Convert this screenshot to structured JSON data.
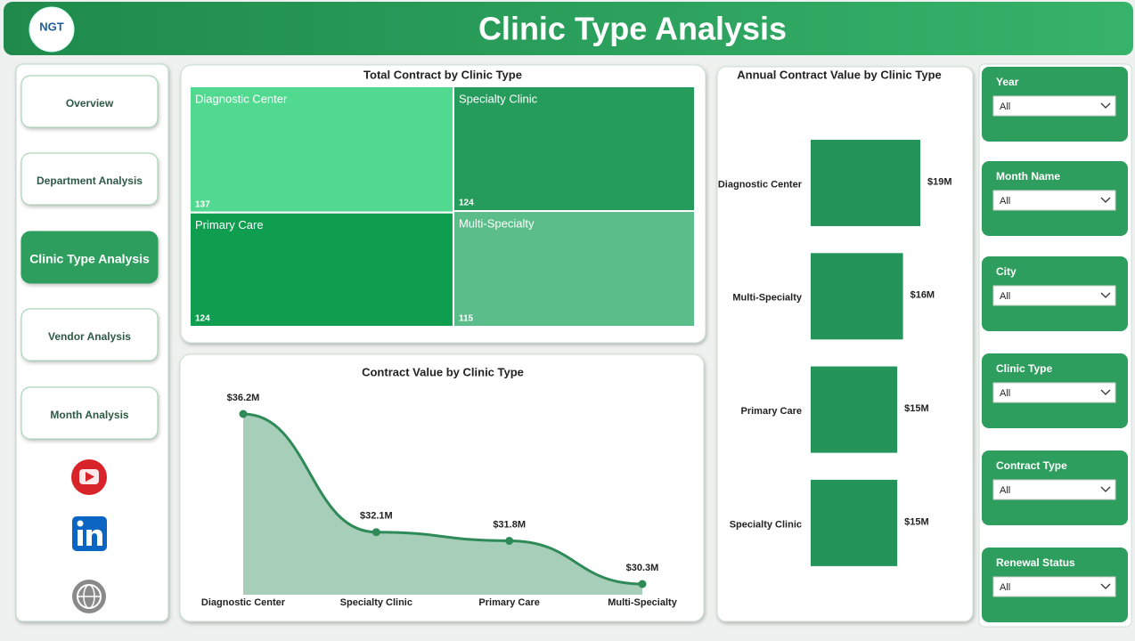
{
  "header": {
    "logo": "NGT",
    "title": "Clinic Type Analysis"
  },
  "nav": {
    "items": [
      "Overview",
      "Department Analysis",
      "Clinic Type Analysis",
      "Vendor Analysis",
      "Month Analysis"
    ],
    "active": 2
  },
  "filters": [
    {
      "label": "Year",
      "value": "All"
    },
    {
      "label": "Month Name",
      "value": "All"
    },
    {
      "label": "City",
      "value": "All"
    },
    {
      "label": "Clinic Type",
      "value": "All"
    },
    {
      "label": "Contract Type",
      "value": "All"
    },
    {
      "label": "Renewal Status",
      "value": "All"
    }
  ],
  "chart_data": [
    {
      "type": "treemap",
      "title": "Total Contract by Clinic Type",
      "categories": [
        "Diagnostic Center",
        "Primary Care",
        "Specialty Clinic",
        "Multi-Specialty"
      ],
      "values": [
        137,
        124,
        124,
        115
      ],
      "colors": [
        "#52d990",
        "#0f9d50",
        "#259b5c",
        "#5bbd8a"
      ]
    },
    {
      "type": "area",
      "title": "Contract Value by Clinic Type",
      "categories": [
        "Diagnostic Center",
        "Specialty Clinic",
        "Primary Care",
        "Multi-Specialty"
      ],
      "values": [
        36.2,
        32.1,
        31.8,
        30.3
      ],
      "value_labels": [
        "$36.2M",
        "$32.1M",
        "$31.8M",
        "$30.3M"
      ],
      "color": "#2e8b57"
    },
    {
      "type": "hbar",
      "title": "Annual Contract Value by Clinic Type",
      "categories": [
        "Diagnostic Center",
        "Multi-Specialty",
        "Primary Care",
        "Specialty Clinic"
      ],
      "values": [
        19,
        16,
        15,
        15
      ],
      "value_labels": [
        "$19M",
        "$16M",
        "$15M",
        "$15M"
      ],
      "color": "#24945a"
    }
  ]
}
